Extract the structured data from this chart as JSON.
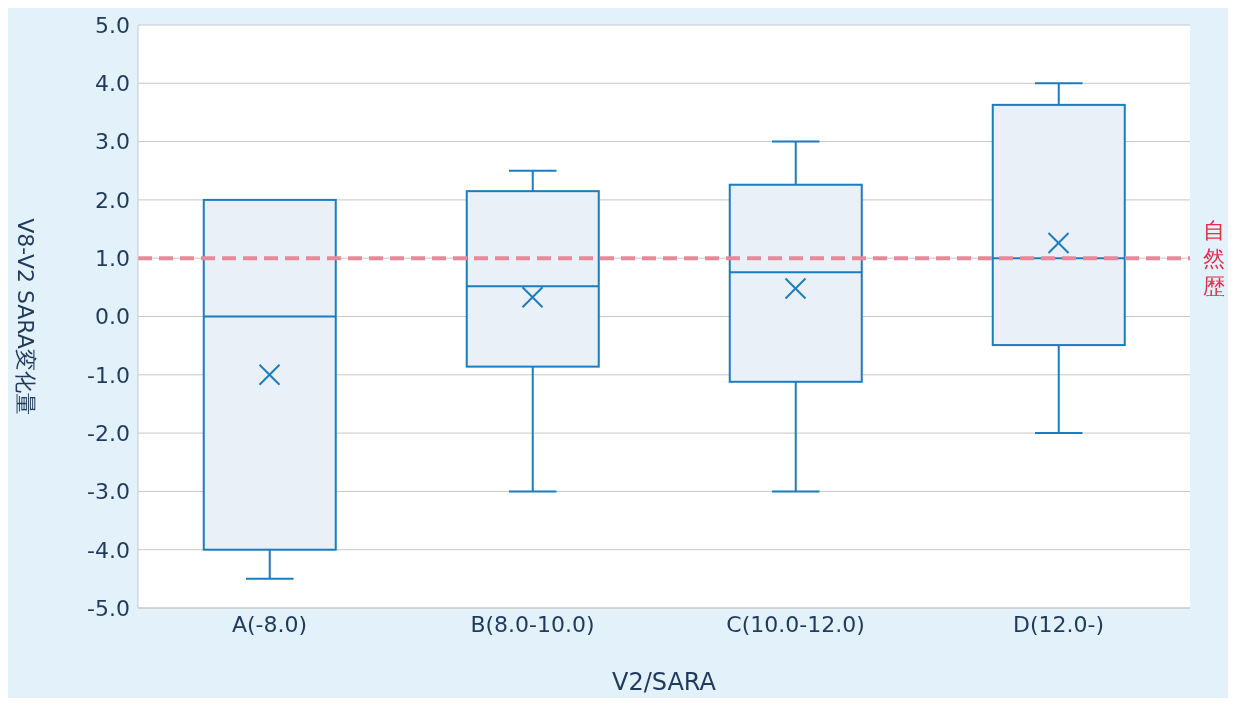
{
  "chart_data": {
    "type": "box",
    "xlabel": "V2/SARA",
    "ylabel": "V8-V2  SARA変化量",
    "categories": [
      "A(-8.0)",
      "B(8.0-10.0)",
      "C(10.0-12.0)",
      "D(12.0-)"
    ],
    "boxes": [
      {
        "low": -4.5,
        "q1": -4.0,
        "median": 0.0,
        "q3": 2.0,
        "high": 2.0,
        "mean": -1.0
      },
      {
        "low": -3.0,
        "q1": -0.86,
        "median": 0.52,
        "q3": 2.15,
        "high": 2.5,
        "mean": 0.33
      },
      {
        "low": -3.0,
        "q1": -1.12,
        "median": 0.76,
        "q3": 2.26,
        "high": 3.0,
        "mean": 0.48
      },
      {
        "low": -2.0,
        "q1": -0.49,
        "median": 1.0,
        "q3": 3.63,
        "high": 4.0,
        "mean": 1.26
      }
    ],
    "color": "#1a7dc0",
    "marker": "cross",
    "ylim": [
      -5,
      5
    ],
    "yticks": [
      {
        "value": -5,
        "label": "-5.0"
      },
      {
        "value": -4,
        "label": "-4.0"
      },
      {
        "value": -3,
        "label": "-3.0"
      },
      {
        "value": -2,
        "label": "-2.0"
      },
      {
        "value": -1,
        "label": "-1.0"
      },
      {
        "value": 0,
        "label": "0.0"
      },
      {
        "value": 1,
        "label": "1.0"
      },
      {
        "value": 2,
        "label": "2.0"
      },
      {
        "value": 3,
        "label": "3.0"
      },
      {
        "value": 4,
        "label": "4.0"
      },
      {
        "value": 5,
        "label": "5.0"
      }
    ],
    "grid": "y",
    "ref_lines": [
      {
        "axis": "y",
        "value": 1.0,
        "label": "自然歴",
        "color": "#e8899a",
        "line_style": "dashed"
      }
    ]
  }
}
